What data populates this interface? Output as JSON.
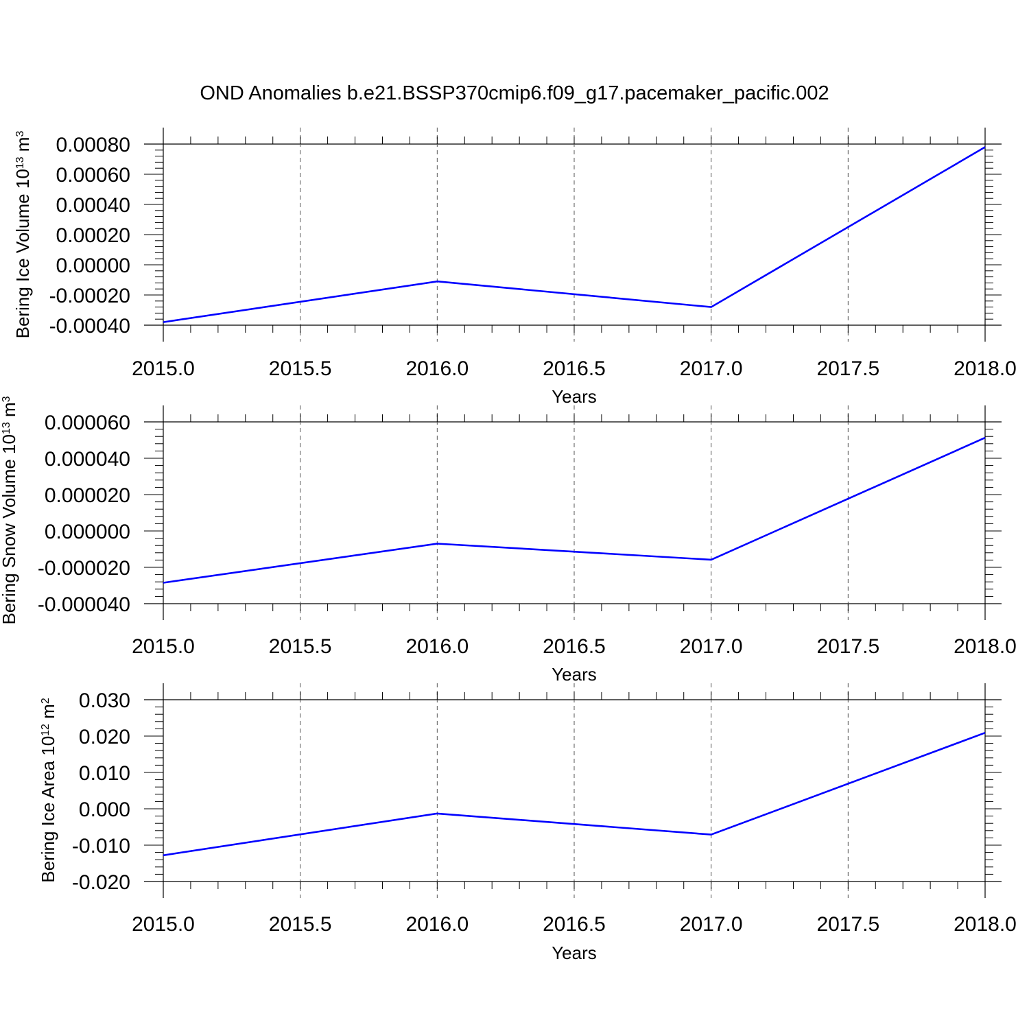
{
  "title": "OND Anomalies b.e21.BSSP370cmip6.f09_g17.pacemaker_pacific.002",
  "colors": {
    "line": "#0000ff",
    "axis": "#000000",
    "grid": "#555555",
    "background": "#ffffff"
  },
  "chart_data": [
    {
      "type": "line",
      "ylabel": {
        "text": "Bering Ice Volume 10",
        "sup": "13",
        "unit": " m",
        "unit_sup": "3"
      },
      "xlabel": "Years",
      "xlim": [
        2015.0,
        2018.0
      ],
      "ylim": [
        -0.0004,
        0.0008
      ],
      "xticks": [
        "2015.0",
        "2015.5",
        "2016.0",
        "2016.5",
        "2017.0",
        "2017.5",
        "2018.0"
      ],
      "yticks": [
        "-0.00040",
        "-0.00020",
        "0.00000",
        "0.00020",
        "0.00040",
        "0.00060",
        "0.00080"
      ],
      "grid": "x dashed",
      "series": [
        {
          "x": [
            2015,
            2016,
            2017,
            2018
          ],
          "values": [
            -0.00038,
            -0.00011,
            -0.00028,
            0.00078
          ]
        }
      ]
    },
    {
      "type": "line",
      "ylabel": {
        "text": "Bering Snow Volume 10",
        "sup": "13",
        "unit": " m",
        "unit_sup": "3"
      },
      "xlabel": "Years",
      "xlim": [
        2015.0,
        2018.0
      ],
      "ylim": [
        -4e-05,
        6e-05
      ],
      "xticks": [
        "2015.0",
        "2015.5",
        "2016.0",
        "2016.5",
        "2017.0",
        "2017.5",
        "2018.0"
      ],
      "yticks": [
        "-0.000040",
        "-0.000020",
        "0.000000",
        "0.000020",
        "0.000040",
        "0.000060"
      ],
      "grid": "x dashed",
      "series": [
        {
          "x": [
            2015,
            2016,
            2017,
            2018
          ],
          "values": [
            -2.85e-05,
            -7e-06,
            -1.58e-05,
            5.13e-05
          ]
        }
      ]
    },
    {
      "type": "line",
      "ylabel": {
        "text": "Bering Ice Area 10",
        "sup": "12",
        "unit": " m",
        "unit_sup": "2"
      },
      "xlabel": "Years",
      "xlim": [
        2015.0,
        2018.0
      ],
      "ylim": [
        -0.02,
        0.03
      ],
      "xticks": [
        "2015.0",
        "2015.5",
        "2016.0",
        "2016.5",
        "2017.0",
        "2017.5",
        "2018.0"
      ],
      "yticks": [
        "-0.020",
        "-0.010",
        "0.000",
        "0.010",
        "0.020",
        "0.030"
      ],
      "grid": "x dashed",
      "series": [
        {
          "x": [
            2015,
            2016,
            2017,
            2018
          ],
          "values": [
            -0.0128,
            -0.0013,
            -0.0071,
            0.0209
          ]
        }
      ]
    }
  ]
}
